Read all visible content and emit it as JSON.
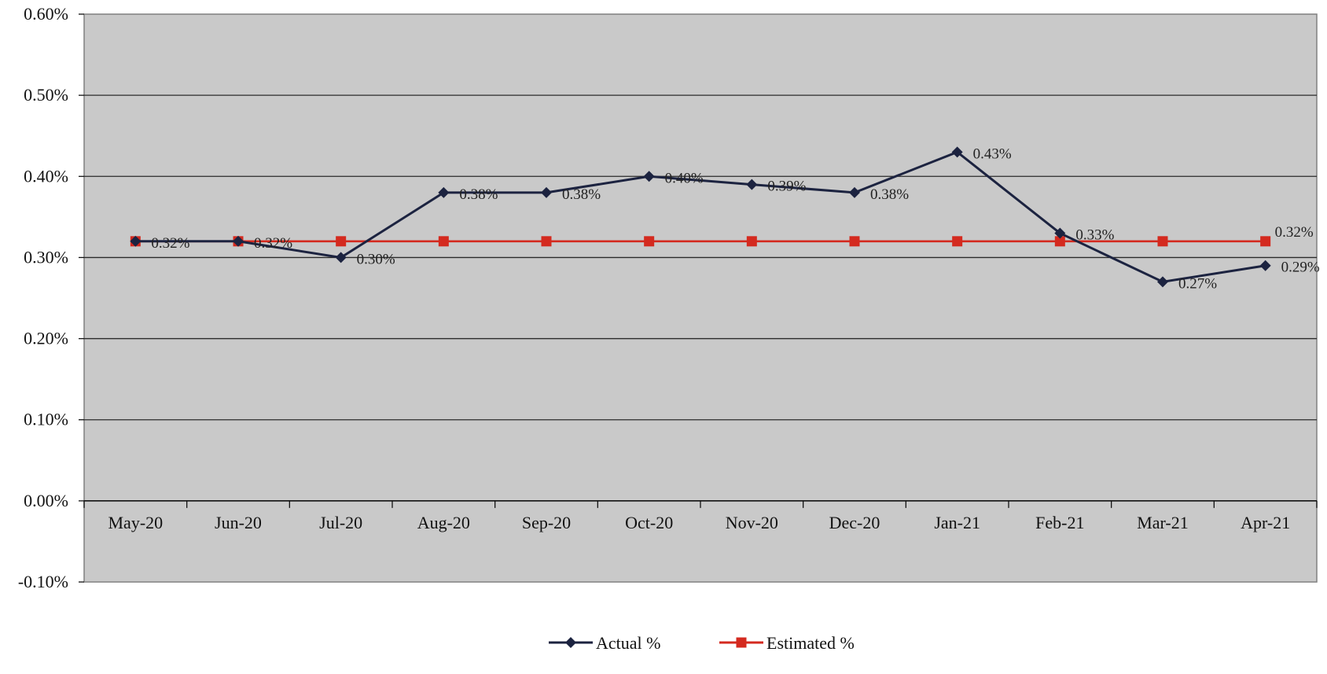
{
  "chart_data": {
    "type": "line",
    "categories": [
      "May-20",
      "Jun-20",
      "Jul-20",
      "Aug-20",
      "Sep-20",
      "Oct-20",
      "Nov-20",
      "Dec-20",
      "Jan-21",
      "Feb-21",
      "Mar-21",
      "Apr-21"
    ],
    "series": [
      {
        "name": "Actual %",
        "values": [
          0.32,
          0.32,
          0.3,
          0.38,
          0.38,
          0.4,
          0.39,
          0.38,
          0.43,
          0.33,
          0.27,
          0.29
        ],
        "labels": [
          "0.32%",
          "0.32%",
          "0.30%",
          "0.38%",
          "0.38%",
          "0.40%",
          "0.39%",
          "0.38%",
          "0.43%",
          "0.33%",
          "0.27%",
          "0.29%"
        ],
        "color": "#1c2340",
        "marker": "diamond"
      },
      {
        "name": "Estimated %",
        "values": [
          0.32,
          0.32,
          0.32,
          0.32,
          0.32,
          0.32,
          0.32,
          0.32,
          0.32,
          0.32,
          0.32,
          0.32
        ],
        "labels": [
          "",
          "",
          "",
          "",
          "",
          "",
          "",
          "",
          "",
          "",
          "",
          "0.32%"
        ],
        "color": "#d42a1f",
        "marker": "square"
      }
    ],
    "yticks": [
      "0.60%",
      "0.50%",
      "0.40%",
      "0.30%",
      "0.20%",
      "0.10%",
      "0.00%",
      "-0.10%"
    ],
    "ylim": [
      -0.1,
      0.6
    ],
    "grid": true,
    "legend": "bottom",
    "plot_bg": "#c9c9c9"
  }
}
